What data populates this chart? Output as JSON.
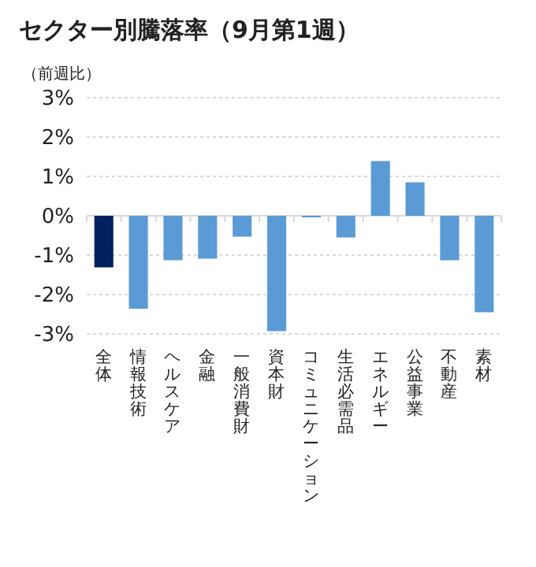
{
  "chart_data": {
    "type": "bar",
    "title": "セクター別騰落率（9月第1週）",
    "ylabel": "（前週比）",
    "categories": [
      "全体",
      "情報技術",
      "ヘルスケア",
      "金融",
      "一般消費財",
      "資本財",
      "コミュニケーション",
      "生活必需品",
      "エネルギー",
      "公益事業",
      "不動産",
      "素材"
    ],
    "values": [
      -1.31,
      -2.36,
      -1.13,
      -1.09,
      -0.53,
      -2.93,
      -0.04,
      -0.55,
      1.39,
      0.85,
      -1.13,
      -2.45
    ],
    "colors": [
      "#002060",
      "#5b9bd5",
      "#5b9bd5",
      "#5b9bd5",
      "#5b9bd5",
      "#5b9bd5",
      "#5b9bd5",
      "#5b9bd5",
      "#5b9bd5",
      "#5b9bd5",
      "#5b9bd5",
      "#5b9bd5"
    ],
    "ylim": [
      -3,
      3
    ],
    "yticks": [
      {
        "value": -3,
        "label": "-3%"
      },
      {
        "value": -2,
        "label": "-2%"
      },
      {
        "value": -1,
        "label": "-1%"
      },
      {
        "value": 0,
        "label": "0%"
      },
      {
        "value": 1,
        "label": "1%"
      },
      {
        "value": 2,
        "label": "2%"
      },
      {
        "value": 3,
        "label": "3%"
      }
    ],
    "grid": "y"
  }
}
